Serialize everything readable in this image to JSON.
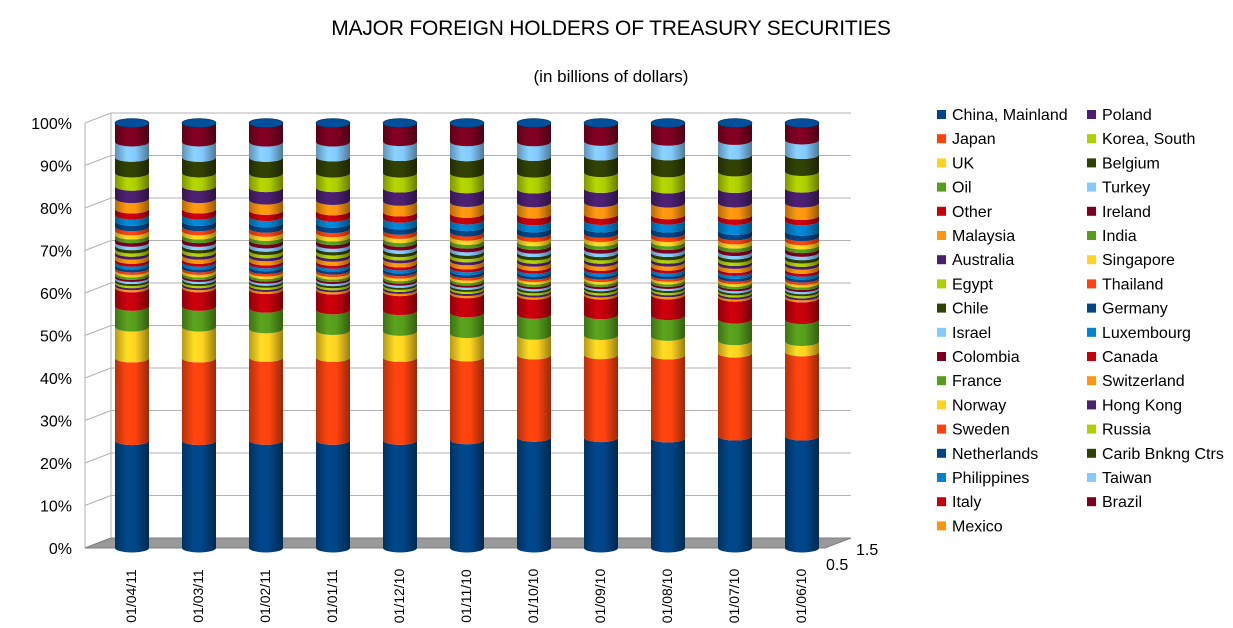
{
  "chart_data": {
    "type": "bar",
    "stacked": "percent",
    "three_d": true,
    "title": "MAJOR FOREIGN HOLDERS OF TREASURY SECURITIES",
    "subtitle": "(in billions of dollars)",
    "categories": [
      "01/04/11",
      "01/03/11",
      "01/02/11",
      "01/01/11",
      "01/12/10",
      "01/11/10",
      "01/10/10",
      "01/09/10",
      "01/08/10",
      "01/07/10",
      "01/06/10"
    ],
    "y_ticks": [
      "0%",
      "10%",
      "20%",
      "30%",
      "40%",
      "50%",
      "60%",
      "70%",
      "80%",
      "90%",
      "100%"
    ],
    "depth_axis_ticks": [
      "0.5",
      "1.5"
    ],
    "ylim": [
      0,
      100
    ],
    "grid": true,
    "legend_position": "right",
    "series": [
      {
        "name": "China, Mainland",
        "color": "#004586",
        "values": [
          26.0,
          26.0,
          26.0,
          26.0,
          26.0,
          26.0,
          26.5,
          26.5,
          26.5,
          27.0,
          27.0
        ]
      },
      {
        "name": "Japan",
        "color": "#ff420e",
        "values": [
          20.0,
          20.0,
          20.0,
          20.0,
          20.0,
          19.9,
          19.7,
          19.9,
          20.0,
          20.0,
          20.3
        ]
      },
      {
        "name": "UK",
        "color": "#ffd320",
        "values": [
          7.5,
          7.5,
          6.9,
          6.5,
          6.3,
          5.6,
          4.7,
          4.6,
          4.5,
          3.0,
          2.5
        ]
      },
      {
        "name": "Oil",
        "color": "#579d1c",
        "values": [
          5.0,
          5.0,
          5.0,
          5.0,
          5.0,
          5.0,
          5.0,
          5.0,
          5.0,
          5.2,
          5.3
        ]
      },
      {
        "name": "Other",
        "color": "#c5000b",
        "values": [
          4.5,
          4.5,
          4.5,
          4.8,
          4.6,
          4.6,
          4.6,
          4.7,
          5.0,
          5.3,
          5.2
        ]
      },
      {
        "name": "Malaysia",
        "color": "#ff950e",
        "values": [
          0.5,
          0.5,
          0.5,
          0.5,
          0.5,
          0.5,
          0.5,
          0.5,
          0.5,
          0.5,
          0.5
        ]
      },
      {
        "name": "Australia",
        "color": "#4b1f6f",
        "values": [
          0.5,
          0.5,
          0.5,
          0.5,
          0.5,
          0.5,
          0.5,
          0.5,
          0.5,
          0.5,
          0.5
        ]
      },
      {
        "name": "Egypt",
        "color": "#aecf00",
        "values": [
          0.5,
          0.5,
          0.5,
          0.5,
          0.5,
          0.5,
          0.5,
          0.5,
          0.5,
          0.5,
          0.5
        ]
      },
      {
        "name": "Chile",
        "color": "#314004",
        "values": [
          0.5,
          0.5,
          0.5,
          0.5,
          0.5,
          0.5,
          0.5,
          0.5,
          0.5,
          0.5,
          0.5
        ]
      },
      {
        "name": "Israel",
        "color": "#83caff",
        "values": [
          0.5,
          0.5,
          0.5,
          0.5,
          0.5,
          0.5,
          0.5,
          0.5,
          0.5,
          0.5,
          0.5
        ]
      },
      {
        "name": "Colombia",
        "color": "#7e0021",
        "values": [
          0.5,
          0.5,
          0.5,
          0.5,
          0.5,
          0.5,
          0.5,
          0.5,
          0.5,
          0.5,
          0.5
        ]
      },
      {
        "name": "France",
        "color": "#579d1c",
        "values": [
          0.6,
          0.6,
          0.6,
          0.6,
          0.6,
          0.6,
          0.6,
          0.6,
          0.6,
          0.6,
          0.6
        ]
      },
      {
        "name": "Norway",
        "color": "#ffd320",
        "values": [
          0.6,
          0.6,
          0.6,
          0.6,
          0.6,
          0.6,
          0.6,
          0.6,
          0.6,
          0.6,
          0.6
        ]
      },
      {
        "name": "Sweden",
        "color": "#ff420e",
        "values": [
          0.6,
          0.6,
          0.6,
          0.6,
          0.6,
          0.6,
          0.6,
          0.6,
          0.6,
          0.6,
          0.6
        ]
      },
      {
        "name": "Netherlands",
        "color": "#004586",
        "values": [
          0.7,
          0.7,
          0.7,
          0.7,
          0.7,
          0.7,
          0.7,
          0.7,
          0.7,
          0.7,
          0.7
        ]
      },
      {
        "name": "Philippines",
        "color": "#0084d1",
        "values": [
          0.7,
          0.7,
          0.7,
          0.7,
          0.7,
          0.7,
          0.7,
          0.7,
          0.7,
          0.7,
          0.7
        ]
      },
      {
        "name": "Italy",
        "color": "#c5000b",
        "values": [
          0.7,
          0.7,
          0.7,
          0.7,
          0.7,
          0.7,
          0.7,
          0.7,
          0.7,
          0.7,
          0.7
        ]
      },
      {
        "name": "Mexico",
        "color": "#ff950e",
        "values": [
          1.0,
          1.0,
          1.0,
          1.0,
          1.0,
          1.0,
          1.0,
          1.0,
          1.0,
          1.0,
          1.0
        ]
      },
      {
        "name": "Poland",
        "color": "#4b1f6f",
        "values": [
          0.7,
          0.7,
          0.7,
          0.7,
          0.7,
          0.7,
          0.7,
          0.7,
          0.7,
          0.7,
          0.7
        ]
      },
      {
        "name": "Korea, South",
        "color": "#aecf00",
        "values": [
          0.8,
          0.8,
          0.8,
          0.8,
          0.8,
          0.8,
          0.8,
          0.8,
          0.8,
          0.8,
          0.8
        ]
      },
      {
        "name": "Belgium",
        "color": "#314004",
        "values": [
          0.8,
          0.8,
          0.8,
          0.8,
          0.8,
          0.8,
          0.8,
          0.8,
          0.8,
          0.8,
          0.8
        ]
      },
      {
        "name": "Turkey",
        "color": "#83caff",
        "values": [
          0.8,
          0.8,
          0.8,
          0.8,
          0.8,
          0.8,
          0.8,
          0.8,
          0.8,
          0.8,
          0.8
        ]
      },
      {
        "name": "Ireland",
        "color": "#7e0021",
        "values": [
          0.9,
          0.9,
          0.9,
          0.9,
          0.9,
          0.9,
          0.9,
          0.9,
          0.9,
          0.9,
          0.9
        ]
      },
      {
        "name": "India",
        "color": "#579d1c",
        "values": [
          0.9,
          0.9,
          0.9,
          0.9,
          0.9,
          0.9,
          0.9,
          0.9,
          0.9,
          0.9,
          0.9
        ]
      },
      {
        "name": "Singapore",
        "color": "#ffd320",
        "values": [
          1.0,
          1.0,
          1.0,
          1.0,
          1.0,
          1.0,
          1.0,
          1.0,
          1.0,
          1.0,
          1.0
        ]
      },
      {
        "name": "Thailand",
        "color": "#ff420e",
        "values": [
          1.0,
          1.0,
          1.0,
          1.0,
          1.0,
          1.0,
          1.0,
          1.0,
          1.0,
          1.0,
          1.0
        ]
      },
      {
        "name": "Germany",
        "color": "#004586",
        "values": [
          1.3,
          1.3,
          1.3,
          1.3,
          1.3,
          1.3,
          1.3,
          1.3,
          1.3,
          1.3,
          1.3
        ]
      },
      {
        "name": "Luxembourg",
        "color": "#0084d1",
        "values": [
          1.5,
          1.5,
          1.5,
          1.5,
          1.6,
          1.6,
          1.7,
          1.8,
          1.9,
          2.4,
          2.5
        ]
      },
      {
        "name": "Canada",
        "color": "#c5000b",
        "values": [
          1.5,
          1.5,
          1.5,
          1.5,
          1.5,
          1.6,
          1.6,
          1.5,
          1.3,
          1.3,
          1.3
        ]
      },
      {
        "name": "Switzerland",
        "color": "#ff950e",
        "values": [
          2.5,
          2.5,
          2.5,
          2.5,
          2.6,
          2.6,
          2.7,
          2.8,
          2.8,
          2.9,
          3.0
        ]
      },
      {
        "name": "Hong Kong",
        "color": "#4b1f6f",
        "values": [
          3.0,
          3.0,
          3.0,
          3.1,
          3.2,
          3.3,
          3.3,
          3.4,
          3.4,
          3.5,
          3.6
        ]
      },
      {
        "name": "Russia",
        "color": "#aecf00",
        "values": [
          3.2,
          3.2,
          3.4,
          3.5,
          3.6,
          3.7,
          3.8,
          3.8,
          3.9,
          4.0,
          4.0
        ]
      },
      {
        "name": "Carib Bnkng Ctrs",
        "color": "#314004",
        "values": [
          3.8,
          3.8,
          3.9,
          3.9,
          4.0,
          4.0,
          4.0,
          4.0,
          4.1,
          4.1,
          4.1
        ]
      },
      {
        "name": "Taiwan",
        "color": "#83caff",
        "values": [
          3.7,
          3.7,
          3.7,
          3.6,
          3.6,
          3.6,
          3.5,
          3.5,
          3.5,
          3.5,
          3.5
        ]
      },
      {
        "name": "Brazil",
        "color": "#7e0021",
        "values": [
          4.6,
          4.6,
          4.6,
          4.6,
          4.5,
          4.5,
          4.5,
          4.4,
          4.4,
          4.2,
          4.1
        ]
      }
    ]
  }
}
